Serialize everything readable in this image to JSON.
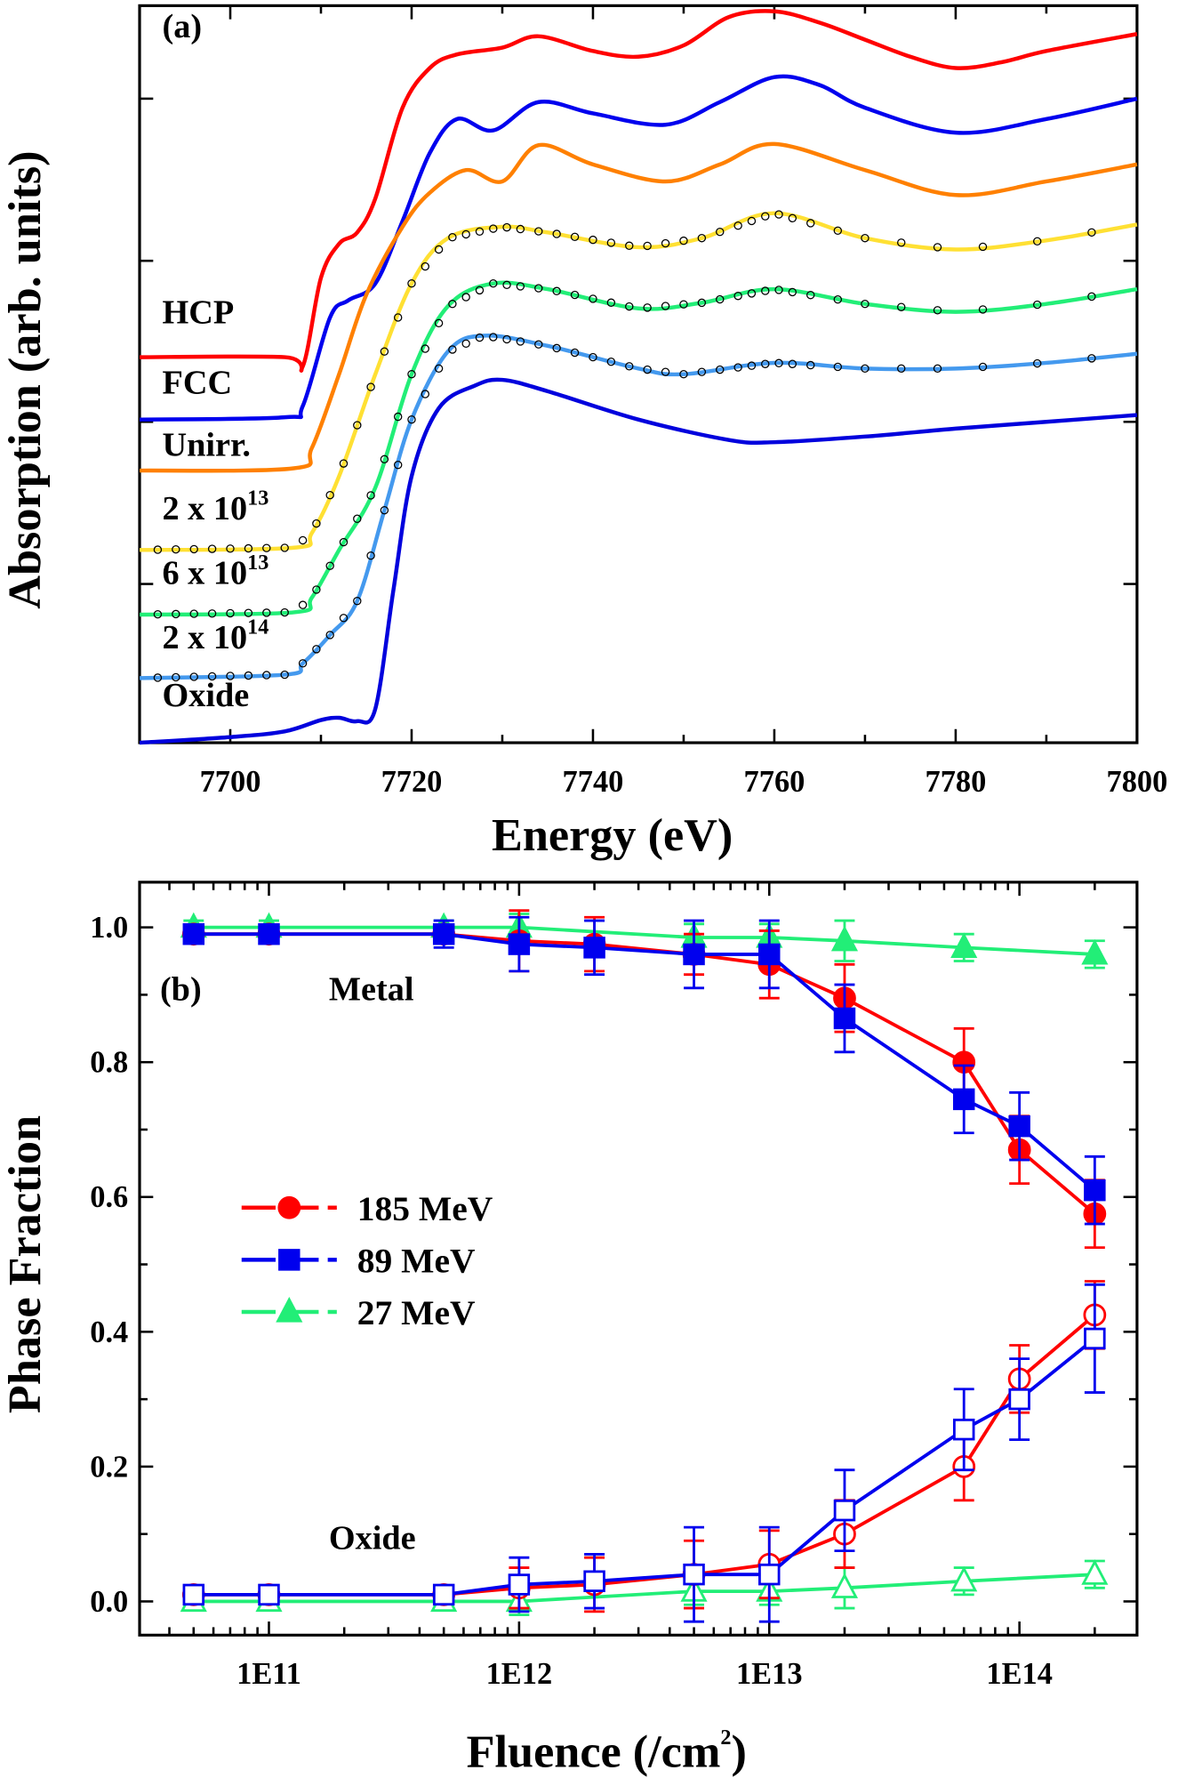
{
  "chart_data": [
    {
      "type": "line",
      "panel_label": "(a)",
      "xlabel": "Energy (eV)",
      "ylabel": "Absorption (arb. units)",
      "xlim": [
        7690,
        7800
      ],
      "ylim": [
        0,
        6.5
      ],
      "xticks": [
        7700,
        7720,
        7740,
        7760,
        7780,
        7800
      ],
      "xtick_labels": [
        "7700",
        "7720",
        "7740",
        "7760",
        "7780",
        "7800"
      ],
      "yticks": [
        1.4,
        2.83,
        4.25,
        5.68
      ],
      "series": [
        {
          "name": "HCP",
          "label_base": "HCP",
          "label_exp": "",
          "color": "#ff0000",
          "markers": false,
          "points": [
            [
              7690,
              3.4
            ],
            [
              7706,
              3.4
            ],
            [
              7708,
              3.32
            ],
            [
              7710,
              4.1
            ],
            [
              7712,
              4.4
            ],
            [
              7714,
              4.5
            ],
            [
              7716,
              4.8
            ],
            [
              7719,
              5.6
            ],
            [
              7722,
              5.95
            ],
            [
              7725,
              6.07
            ],
            [
              7730,
              6.13
            ],
            [
              7734,
              6.23
            ],
            [
              7740,
              6.1
            ],
            [
              7745,
              6.05
            ],
            [
              7750,
              6.15
            ],
            [
              7755,
              6.4
            ],
            [
              7760,
              6.45
            ],
            [
              7765,
              6.35
            ],
            [
              7770,
              6.2
            ],
            [
              7775,
              6.05
            ],
            [
              7780,
              5.95
            ],
            [
              7785,
              6.0
            ],
            [
              7790,
              6.1
            ],
            [
              7800,
              6.25
            ]
          ]
        },
        {
          "name": "FCC",
          "label_base": "FCC",
          "label_exp": "",
          "color": "#0000ee",
          "markers": false,
          "points": [
            [
              7690,
              2.85
            ],
            [
              7706,
              2.87
            ],
            [
              7708,
              2.97
            ],
            [
              7711,
              3.75
            ],
            [
              7713,
              3.9
            ],
            [
              7716,
              4.05
            ],
            [
              7719,
              4.6
            ],
            [
              7722,
              5.2
            ],
            [
              7725,
              5.5
            ],
            [
              7729,
              5.4
            ],
            [
              7734,
              5.65
            ],
            [
              7740,
              5.55
            ],
            [
              7748,
              5.45
            ],
            [
              7754,
              5.65
            ],
            [
              7760,
              5.87
            ],
            [
              7765,
              5.8
            ],
            [
              7770,
              5.6
            ],
            [
              7780,
              5.38
            ],
            [
              7790,
              5.5
            ],
            [
              7800,
              5.68
            ]
          ]
        },
        {
          "name": "Unirr.",
          "label_base": "Unirr.",
          "label_exp": "",
          "color": "#ff8000",
          "markers": false,
          "points": [
            [
              7690,
              2.4
            ],
            [
              7707,
              2.42
            ],
            [
              7709,
              2.6
            ],
            [
              7712,
              3.25
            ],
            [
              7715,
              3.95
            ],
            [
              7719,
              4.55
            ],
            [
              7722,
              4.85
            ],
            [
              7726,
              5.05
            ],
            [
              7730,
              4.95
            ],
            [
              7734,
              5.27
            ],
            [
              7740,
              5.1
            ],
            [
              7748,
              4.95
            ],
            [
              7754,
              5.1
            ],
            [
              7760,
              5.28
            ],
            [
              7770,
              5.05
            ],
            [
              7780,
              4.83
            ],
            [
              7790,
              4.95
            ],
            [
              7800,
              5.1
            ]
          ]
        },
        {
          "name": "2 x 10^13",
          "label_base": "2 x 10",
          "label_exp": "13",
          "color": "#ffe033",
          "markers": true,
          "points": [
            [
              7690,
              1.7
            ],
            [
              7707,
              1.72
            ],
            [
              7709,
              1.85
            ],
            [
              7712,
              2.35
            ],
            [
              7716,
              3.25
            ],
            [
              7720,
              4.05
            ],
            [
              7724,
              4.45
            ],
            [
              7730,
              4.55
            ],
            [
              7735,
              4.5
            ],
            [
              7745,
              4.37
            ],
            [
              7752,
              4.45
            ],
            [
              7760,
              4.67
            ],
            [
              7770,
              4.45
            ],
            [
              7780,
              4.35
            ],
            [
              7790,
              4.43
            ],
            [
              7800,
              4.57
            ]
          ]
        },
        {
          "name": "6 x 10^13",
          "label_base": "6 x 10",
          "label_exp": "13",
          "color": "#22ee77",
          "markers": true,
          "points": [
            [
              7690,
              1.13
            ],
            [
              7707,
              1.15
            ],
            [
              7709,
              1.28
            ],
            [
              7712,
              1.7
            ],
            [
              7716,
              2.25
            ],
            [
              7720,
              3.25
            ],
            [
              7724,
              3.85
            ],
            [
              7729,
              4.05
            ],
            [
              7735,
              4.0
            ],
            [
              7745,
              3.83
            ],
            [
              7752,
              3.88
            ],
            [
              7760,
              4.0
            ],
            [
              7770,
              3.87
            ],
            [
              7780,
              3.8
            ],
            [
              7790,
              3.87
            ],
            [
              7800,
              4.0
            ]
          ]
        },
        {
          "name": "2 x 10^14",
          "label_base": "2 x 10",
          "label_exp": "14",
          "color": "#4499ee",
          "markers": true,
          "points": [
            [
              7690,
              0.57
            ],
            [
              7706,
              0.6
            ],
            [
              7708,
              0.7
            ],
            [
              7711,
              0.95
            ],
            [
              7714,
              1.25
            ],
            [
              7717,
              2.05
            ],
            [
              7720,
              2.85
            ],
            [
              7724,
              3.45
            ],
            [
              7728,
              3.59
            ],
            [
              7735,
              3.5
            ],
            [
              7745,
              3.3
            ],
            [
              7750,
              3.25
            ],
            [
              7760,
              3.35
            ],
            [
              7770,
              3.3
            ],
            [
              7780,
              3.3
            ],
            [
              7790,
              3.35
            ],
            [
              7800,
              3.43
            ]
          ]
        },
        {
          "name": "Oxide",
          "label_base": "Oxide",
          "label_exp": "",
          "color": "#0000dd",
          "markers": false,
          "points": [
            [
              7690,
              0.0
            ],
            [
              7700,
              0.05
            ],
            [
              7706,
              0.1
            ],
            [
              7710,
              0.2
            ],
            [
              7712,
              0.22
            ],
            [
              7714,
              0.19
            ],
            [
              7716,
              0.3
            ],
            [
              7718,
              1.35
            ],
            [
              7720,
              2.35
            ],
            [
              7723,
              2.95
            ],
            [
              7727,
              3.15
            ],
            [
              7730,
              3.2
            ],
            [
              7735,
              3.1
            ],
            [
              7745,
              2.85
            ],
            [
              7755,
              2.67
            ],
            [
              7760,
              2.65
            ],
            [
              7770,
              2.7
            ],
            [
              7780,
              2.77
            ],
            [
              7790,
              2.83
            ],
            [
              7800,
              2.89
            ]
          ]
        }
      ],
      "marker_energies": [
        7692,
        7694,
        7696,
        7698,
        7700,
        7702,
        7704,
        7706,
        7708,
        7709.5,
        7711,
        7712.5,
        7714,
        7715.5,
        7717,
        7718.5,
        7720,
        7721.5,
        7723,
        7724.5,
        7726,
        7727.5,
        7729,
        7730.5,
        7732,
        7734,
        7736,
        7738,
        7740,
        7742,
        7744,
        7746,
        7748,
        7750,
        7752,
        7754,
        7756,
        7757.5,
        7759,
        7760.5,
        7762,
        7764,
        7767,
        7770,
        7774,
        7778,
        7783,
        7789,
        7795
      ]
    },
    {
      "type": "line",
      "panel_label": "(b)",
      "xlabel": "Fluence (/cm",
      "xlabel_sup": "2",
      "xlabel_end": ")",
      "ylabel": "Phase Fraction",
      "xscale": "log",
      "xlim_log10": [
        10.483,
        14.47
      ],
      "ylim": [
        -0.05,
        1.067
      ],
      "xtick_labels": [
        "1E11",
        "1E12",
        "1E13",
        "1E14"
      ],
      "xtick_log10": [
        11,
        12,
        13,
        14
      ],
      "yticks": [
        0.0,
        0.2,
        0.4,
        0.6,
        0.8,
        1.0
      ],
      "ytick_labels": [
        "0.0",
        "0.2",
        "0.4",
        "0.6",
        "0.8",
        "1.0"
      ],
      "annotations": [
        "Metal",
        "Oxide"
      ],
      "legend_placement": "center-left",
      "series": [
        {
          "name": "27 MeV",
          "color": "#22ee77",
          "marker": "triangle",
          "x": [
            50000000000.0,
            100000000000.0,
            500000000000.0,
            1000000000000.0,
            5000000000000.0,
            10000000000000.0,
            20000000000000.0,
            60000000000000.0,
            200000000000000.0
          ],
          "metal": [
            1.0,
            1.0,
            1.0,
            1.0,
            0.985,
            0.985,
            0.98,
            0.97,
            0.96
          ],
          "metal_err": [
            0.01,
            0.01,
            0.01,
            0.02,
            0.02,
            0.02,
            0.03,
            0.02,
            0.02
          ],
          "oxide": [
            0.0,
            0.0,
            0.0,
            0.0,
            0.015,
            0.015,
            0.02,
            0.03,
            0.04
          ],
          "oxide_err": [
            0.01,
            0.01,
            0.01,
            0.02,
            0.02,
            0.02,
            0.03,
            0.02,
            0.02
          ]
        },
        {
          "name": "185 MeV",
          "color": "#ff0000",
          "marker": "circle",
          "x": [
            50000000000.0,
            100000000000.0,
            500000000000.0,
            1000000000000.0,
            2000000000000.0,
            5000000000000.0,
            10000000000000.0,
            20000000000000.0,
            60000000000000.0,
            100000000000000.0,
            200000000000000.0
          ],
          "metal": [
            0.99,
            0.99,
            0.99,
            0.98,
            0.975,
            0.96,
            0.945,
            0.895,
            0.8,
            0.67,
            0.575
          ],
          "metal_err": [
            0.01,
            0.01,
            0.01,
            0.045,
            0.04,
            0.03,
            0.05,
            0.05,
            0.05,
            0.05,
            0.05
          ],
          "oxide": [
            0.01,
            0.01,
            0.01,
            0.02,
            0.025,
            0.04,
            0.055,
            0.1,
            0.2,
            0.33,
            0.425
          ],
          "oxide_err": [
            0.01,
            0.01,
            0.01,
            0.03,
            0.04,
            0.05,
            0.05,
            0.05,
            0.05,
            0.05,
            0.05
          ]
        },
        {
          "name": "89 MeV",
          "color": "#0000ee",
          "marker": "square",
          "x": [
            50000000000.0,
            100000000000.0,
            500000000000.0,
            1000000000000.0,
            2000000000000.0,
            5000000000000.0,
            10000000000000.0,
            20000000000000.0,
            60000000000000.0,
            100000000000000.0,
            200000000000000.0
          ],
          "metal": [
            0.99,
            0.99,
            0.99,
            0.975,
            0.97,
            0.96,
            0.96,
            0.865,
            0.745,
            0.705,
            0.61
          ],
          "metal_err": [
            0.01,
            0.01,
            0.02,
            0.04,
            0.04,
            0.05,
            0.05,
            0.05,
            0.05,
            0.05,
            0.05
          ],
          "oxide": [
            0.01,
            0.01,
            0.01,
            0.025,
            0.03,
            0.04,
            0.04,
            0.135,
            0.255,
            0.3,
            0.39
          ],
          "oxide_err": [
            0.01,
            0.01,
            0.01,
            0.04,
            0.04,
            0.07,
            0.07,
            0.06,
            0.06,
            0.06,
            0.08
          ]
        }
      ],
      "legend_order": [
        "185 MeV",
        "89 MeV",
        "27 MeV"
      ]
    }
  ]
}
